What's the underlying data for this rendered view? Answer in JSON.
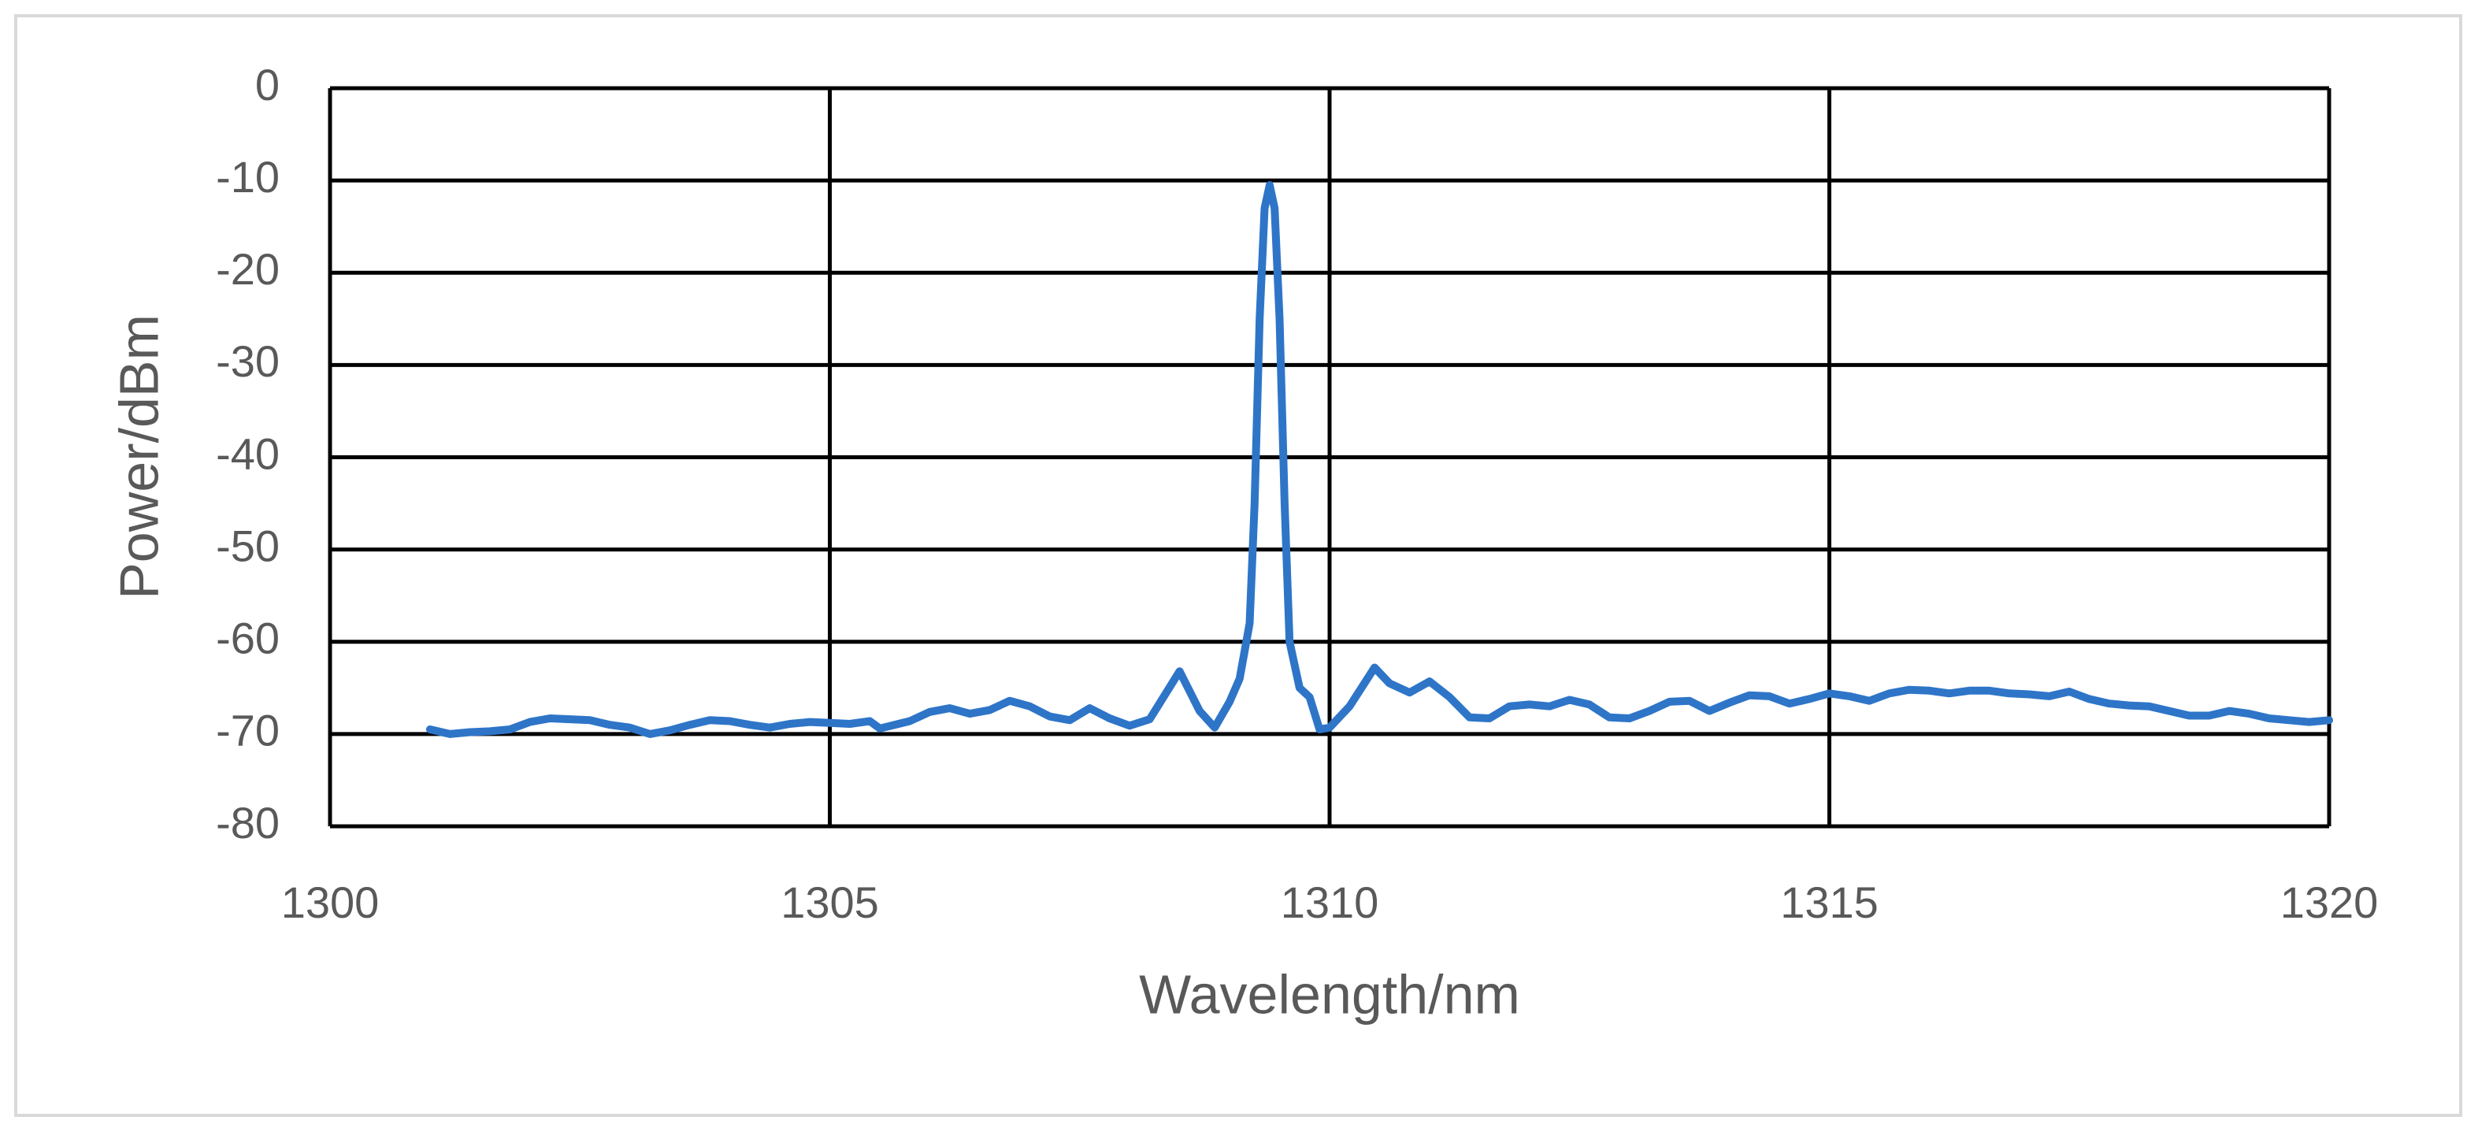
{
  "chart_data": {
    "type": "line",
    "x_label": "Wavelength/nm",
    "y_label": "Power/dBm",
    "xlim": [
      1300,
      1320
    ],
    "xticks": [
      1300,
      1305,
      1310,
      1315,
      1320
    ],
    "ylim": [
      -80,
      0
    ],
    "yticks": [
      0,
      -10,
      -20,
      -30,
      -40,
      -50,
      -60,
      -70,
      -80
    ],
    "grid": true,
    "color": "#2e75c8",
    "x": [
      1301.0,
      1301.2,
      1301.4,
      1301.6,
      1301.8,
      1302.0,
      1302.2,
      1302.4,
      1302.6,
      1302.8,
      1303.0,
      1303.2,
      1303.4,
      1303.6,
      1303.8,
      1304.0,
      1304.2,
      1304.4,
      1304.6,
      1304.8,
      1305.0,
      1305.2,
      1305.4,
      1305.5,
      1305.8,
      1306.0,
      1306.2,
      1306.4,
      1306.6,
      1306.8,
      1307.0,
      1307.2,
      1307.4,
      1307.6,
      1307.8,
      1308.0,
      1308.2,
      1308.5,
      1308.7,
      1308.85,
      1309.0,
      1309.1,
      1309.2,
      1309.25,
      1309.3,
      1309.35,
      1309.4,
      1309.45,
      1309.5,
      1309.55,
      1309.6,
      1309.7,
      1309.8,
      1309.9,
      1310.0,
      1310.2,
      1310.45,
      1310.6,
      1310.8,
      1311.0,
      1311.2,
      1311.4,
      1311.6,
      1311.8,
      1312.0,
      1312.2,
      1312.4,
      1312.6,
      1312.8,
      1313.0,
      1313.2,
      1313.4,
      1313.6,
      1313.8,
      1314.0,
      1314.2,
      1314.4,
      1314.6,
      1314.8,
      1315.0,
      1315.2,
      1315.4,
      1315.6,
      1315.8,
      1316.0,
      1316.2,
      1316.4,
      1316.6,
      1316.8,
      1317.0,
      1317.2,
      1317.4,
      1317.6,
      1317.8,
      1318.0,
      1318.2,
      1318.4,
      1318.6,
      1318.8,
      1319.0,
      1319.2,
      1319.4,
      1319.6,
      1319.8,
      1320.0
    ],
    "values": [
      -69.5,
      -70,
      -69.8,
      -69.7,
      -69.5,
      -68.7,
      -68.3,
      -68.4,
      -68.5,
      -69,
      -69.3,
      -70,
      -69.6,
      -69,
      -68.5,
      -68.6,
      -69,
      -69.3,
      -68.9,
      -68.7,
      -68.8,
      -68.9,
      -68.6,
      -69.4,
      -68.6,
      -67.6,
      -67.2,
      -67.8,
      -67.4,
      -66.4,
      -67,
      -68.1,
      -68.5,
      -67.2,
      -68.3,
      -69.1,
      -68.4,
      -63.2,
      -67.5,
      -69.3,
      -66.5,
      -64,
      -58,
      -45,
      -25,
      -13,
      -10.5,
      -13,
      -25,
      -45,
      -60,
      -65,
      -66,
      -69.5,
      -69.3,
      -67,
      -62.8,
      -64.5,
      -65.5,
      -64.3,
      -66,
      -68.2,
      -68.3,
      -67,
      -66.8,
      -67,
      -66.3,
      -66.8,
      -68.2,
      -68.3,
      -67.5,
      -66.5,
      -66.4,
      -67.5,
      -66.6,
      -65.8,
      -65.9,
      -66.7,
      -66.2,
      -65.6,
      -65.9,
      -66.4,
      -65.6,
      -65.2,
      -65.3,
      -65.6,
      -65.3,
      -65.3,
      -65.6,
      -65.7,
      -65.9,
      -65.4,
      -66.2,
      -66.7,
      -66.9,
      -67,
      -67.5,
      -68,
      -68,
      -67.5,
      -67.8,
      -68.3,
      -68.5,
      -68.7,
      -68.5
    ]
  }
}
